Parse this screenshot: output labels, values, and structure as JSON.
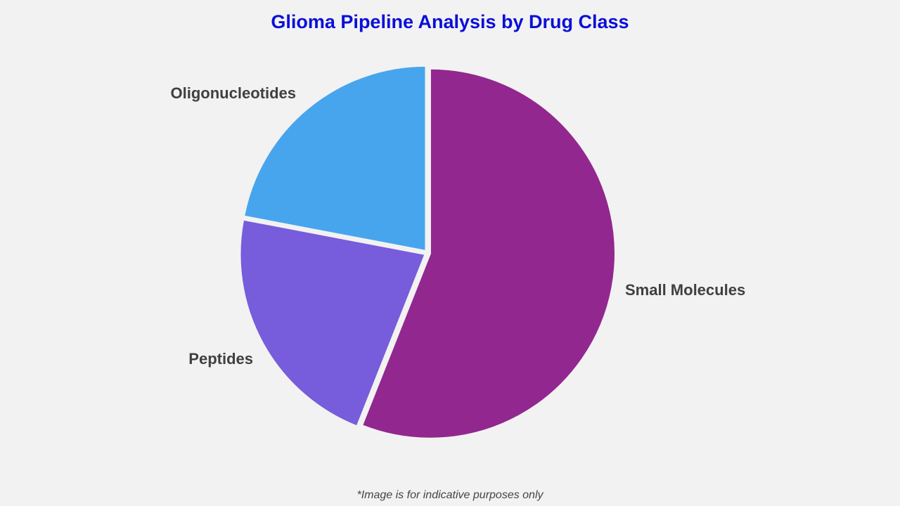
{
  "chart_data": {
    "type": "pie",
    "title": "Glioma Pipeline Analysis by Drug Class",
    "categories": [
      "Small Molecules",
      "Peptides",
      "Oligonucleotides"
    ],
    "values": [
      56,
      22,
      22
    ],
    "colors": [
      "#92278f",
      "#775cdb",
      "#47a5ee"
    ],
    "legend": "none",
    "labels_outside": true
  },
  "footnote": "*Image is for indicative purposes only"
}
